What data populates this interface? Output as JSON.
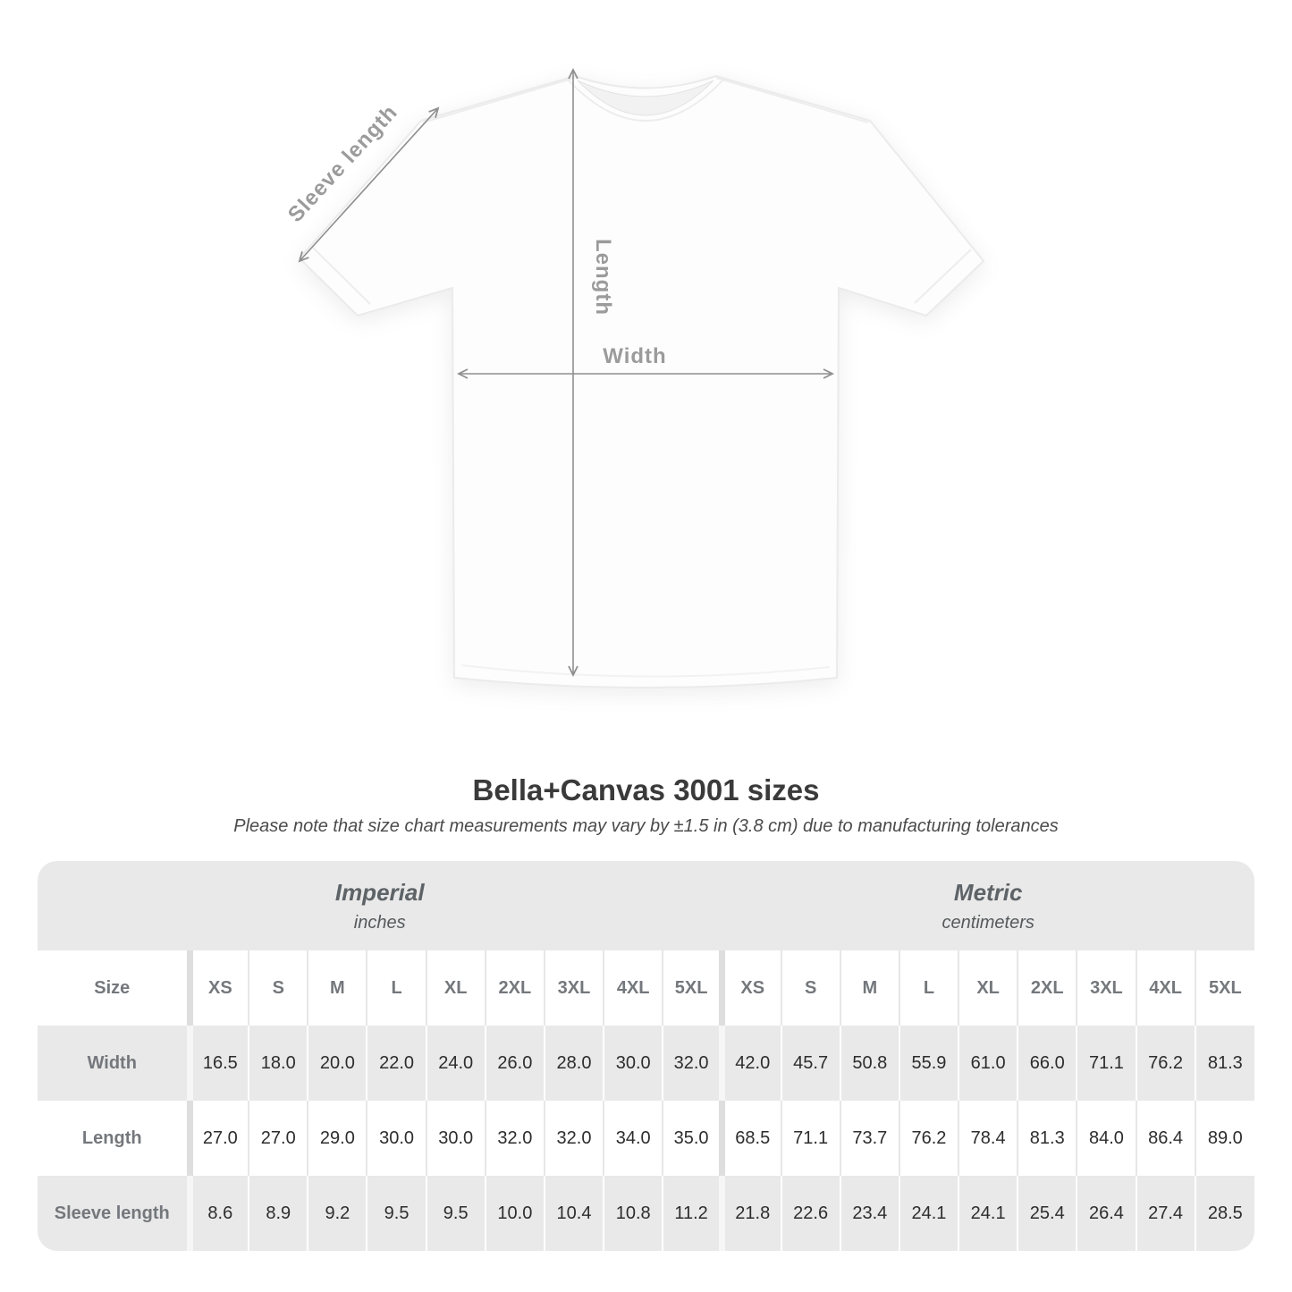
{
  "diagram": {
    "labels": {
      "sleeve": "Sleeve length",
      "length": "Length",
      "width": "Width"
    },
    "arrow_color": "#8f8f8f",
    "label_color": "#9b9b9b"
  },
  "heading": {
    "title": "Bella+Canvas 3001 sizes",
    "note": "Please note that size chart measurements may vary by ±1.5 in (3.8 cm) due to manufacturing tolerances"
  },
  "table": {
    "groups": [
      {
        "label": "Imperial",
        "unit": "inches"
      },
      {
        "label": "Metric",
        "unit": "centimeters"
      }
    ],
    "size_header": "Size",
    "sizes": [
      "XS",
      "S",
      "M",
      "L",
      "XL",
      "2XL",
      "3XL",
      "4XL",
      "5XL"
    ],
    "rows": [
      {
        "label": "Width",
        "imperial": [
          "16.5",
          "18.0",
          "20.0",
          "22.0",
          "24.0",
          "26.0",
          "28.0",
          "30.0",
          "32.0"
        ],
        "metric": [
          "42.0",
          "45.7",
          "50.8",
          "55.9",
          "61.0",
          "66.0",
          "71.1",
          "76.2",
          "81.3"
        ]
      },
      {
        "label": "Length",
        "imperial": [
          "27.0",
          "27.0",
          "29.0",
          "30.0",
          "30.0",
          "32.0",
          "32.0",
          "34.0",
          "35.0"
        ],
        "metric": [
          "68.5",
          "71.1",
          "73.7",
          "76.2",
          "78.4",
          "81.3",
          "84.0",
          "86.4",
          "89.0"
        ]
      },
      {
        "label": "Sleeve length",
        "imperial": [
          "8.6",
          "8.9",
          "9.2",
          "9.5",
          "9.5",
          "10.0",
          "10.4",
          "10.8",
          "11.2"
        ],
        "metric": [
          "21.8",
          "22.6",
          "23.4",
          "24.1",
          "24.1",
          "25.4",
          "26.4",
          "27.4",
          "28.5"
        ]
      }
    ],
    "colors": {
      "band": "#e9e9e9",
      "row_alt": "#ffffff",
      "group_text": "#5d6367",
      "label_text": "#74787c",
      "value_text": "#2d2d2d"
    }
  },
  "chart_data": {
    "type": "table",
    "title": "Bella+Canvas 3001 sizes",
    "note": "Please note that size chart measurements may vary by ±1.5 in (3.8 cm) due to manufacturing tolerances",
    "column_groups": [
      {
        "label": "Imperial",
        "unit": "inches",
        "columns": [
          "XS",
          "S",
          "M",
          "L",
          "XL",
          "2XL",
          "3XL",
          "4XL",
          "5XL"
        ]
      },
      {
        "label": "Metric",
        "unit": "centimeters",
        "columns": [
          "XS",
          "S",
          "M",
          "L",
          "XL",
          "2XL",
          "3XL",
          "4XL",
          "5XL"
        ]
      }
    ],
    "rows": [
      {
        "label": "Width",
        "imperial": [
          16.5,
          18.0,
          20.0,
          22.0,
          24.0,
          26.0,
          28.0,
          30.0,
          32.0
        ],
        "metric": [
          42.0,
          45.7,
          50.8,
          55.9,
          61.0,
          66.0,
          71.1,
          76.2,
          81.3
        ]
      },
      {
        "label": "Length",
        "imperial": [
          27.0,
          27.0,
          29.0,
          30.0,
          30.0,
          32.0,
          32.0,
          34.0,
          35.0
        ],
        "metric": [
          68.5,
          71.1,
          73.7,
          76.2,
          78.4,
          81.3,
          84.0,
          86.4,
          89.0
        ]
      },
      {
        "label": "Sleeve length",
        "imperial": [
          8.6,
          8.9,
          9.2,
          9.5,
          9.5,
          10.0,
          10.4,
          10.8,
          11.2
        ],
        "metric": [
          21.8,
          22.6,
          23.4,
          24.1,
          24.1,
          25.4,
          26.4,
          27.4,
          28.5
        ]
      }
    ]
  }
}
